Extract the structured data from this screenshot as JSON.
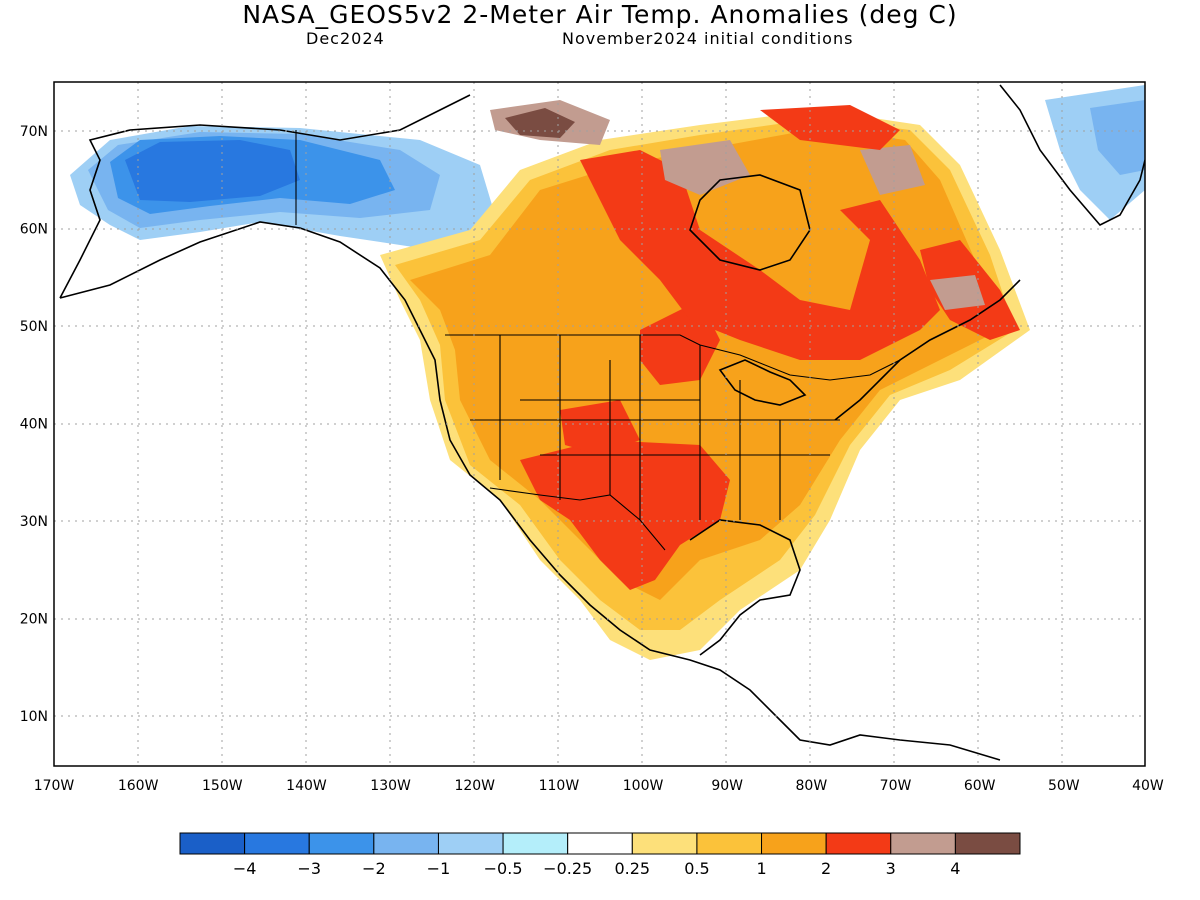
{
  "title": "NASA_GEOS5v2 2-Meter Air Temp. Anomalies (deg C)",
  "subtitle_left": "Dec2024",
  "subtitle_right": "November2024 initial conditions",
  "map": {
    "region": "North America",
    "lon_labels": [
      "170W",
      "160W",
      "150W",
      "140W",
      "130W",
      "120W",
      "110W",
      "100W",
      "90W",
      "80W",
      "70W",
      "60W",
      "50W",
      "40W"
    ],
    "lat_labels": [
      "70N",
      "60N",
      "50N",
      "40N",
      "30N",
      "20N",
      "10N"
    ]
  },
  "colorbar": {
    "colors": [
      "#1a5fc8",
      "#2878e0",
      "#3c93ea",
      "#78b4f0",
      "#9ecff5",
      "#b4eefa",
      "#ffffff",
      "#fde07a",
      "#fbc23a",
      "#f7a21b",
      "#f33a16",
      "#c29c90",
      "#7a4c42"
    ],
    "labels": [
      "−4",
      "−3",
      "−2",
      "−1",
      "−0.5",
      "−0.25",
      "0.25",
      "0.5",
      "1",
      "2",
      "3",
      "4"
    ]
  }
}
